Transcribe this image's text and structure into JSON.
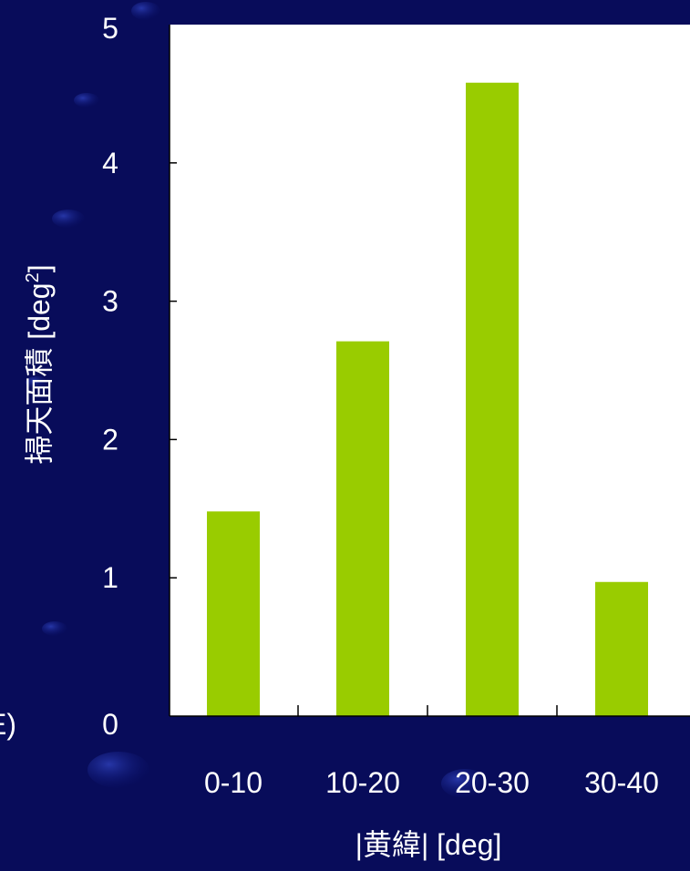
{
  "colors": {
    "background": "#080c5a",
    "plot_area": "#ffffff",
    "bar": "#99cc00",
    "text": "#ffffff",
    "axis": "#000000"
  },
  "edge_fragment": "E)",
  "chart_data": {
    "type": "bar",
    "categories": [
      "0-10",
      "10-20",
      "20-30",
      "30-40"
    ],
    "values": [
      1.48,
      2.71,
      4.58,
      0.97
    ],
    "xlabel": "|黄緯| [deg]",
    "ylabel": "掃天面積 [deg",
    "ylabel_superscript": "2",
    "ylabel_suffix": "]",
    "ylim": [
      0,
      5
    ],
    "yticks": [
      "0",
      "1",
      "2",
      "3",
      "4",
      "5"
    ],
    "grid": false,
    "legend": "none"
  }
}
